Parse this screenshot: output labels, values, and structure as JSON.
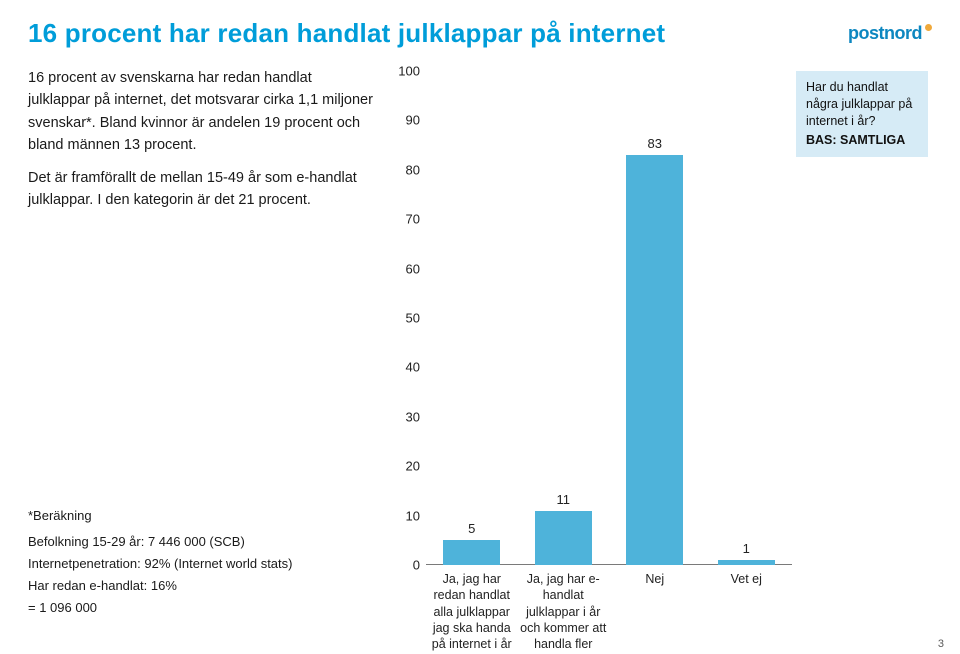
{
  "page": {
    "title": "16 procent har redan handlat julklappar på internet",
    "page_number": "3"
  },
  "logo": {
    "text": "postnord"
  },
  "body_text": {
    "p1": "16 procent av svenskarna har redan handlat julklappar på internet, det motsvarar cirka 1,1 miljoner svenskar*. Bland kvinnor är andelen 19 procent och bland männen 13 procent.",
    "p2": "Det är framförallt de mellan 15-49 år som e-handlat julklappar. I den kategorin är det 21 procent."
  },
  "footnote": {
    "heading": "*Beräkning",
    "l1": "Befolkning 15-29 år: 7 446 000 (SCB)",
    "l2": "Internetpenetration: 92% (Internet world stats)",
    "l3": "Har redan e-handlat: 16%",
    "l4": "= 1 096 000"
  },
  "chart": {
    "type": "bar",
    "question": "Har du handlat några julklappar på internet i år?",
    "base": "BAS: SAMTLIGA",
    "ylim": [
      0,
      100
    ],
    "ytick_step": 10,
    "bar_color": "#4eb3da",
    "legend_bg": "#d6ebf6",
    "background_color": "#ffffff",
    "axis_color": "#7a7a7a",
    "label_fontsize": 12.5,
    "value_fontsize": 13,
    "categories": [
      "Ja, jag har redan handlat alla julklappar jag ska handa på internet i år",
      "Ja, jag har e-handlat julklappar i år och kommer att handla fler",
      "Nej",
      "Vet ej"
    ],
    "values": [
      5,
      11,
      83,
      1
    ]
  }
}
